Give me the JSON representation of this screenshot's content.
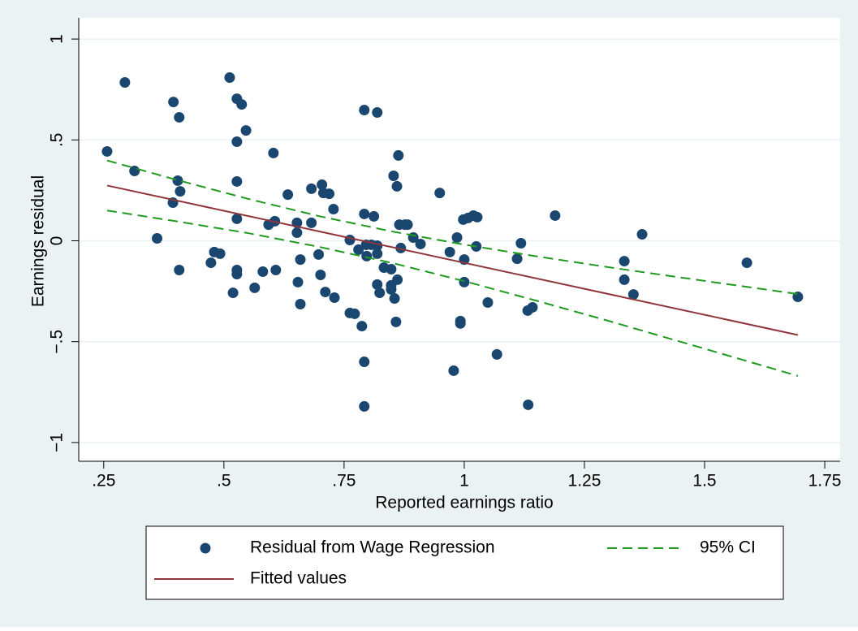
{
  "chart_data": {
    "type": "scatter",
    "xlabel": "Reported earnings ratio",
    "ylabel": "Earnings residual",
    "xlim": [
      0.198,
      1.782
    ],
    "ylim": [
      -1.093,
      1.105
    ],
    "xticks": [
      {
        "value": 0.25,
        "label": ".25"
      },
      {
        "value": 0.5,
        "label": ".5"
      },
      {
        "value": 0.75,
        "label": ".75"
      },
      1,
      1.25,
      1.5,
      1.75
    ],
    "yticks": [
      {
        "value": -1,
        "label": "−1"
      },
      {
        "value": -0.5,
        "label": "−.5"
      },
      0,
      {
        "value": 0.5,
        "label": ".5"
      },
      1
    ],
    "grid": true,
    "series": [
      {
        "name": "Residual from Wage Regression",
        "type": "scatter",
        "color": "#1a476f",
        "x": [
          0.257,
          0.294,
          0.314,
          0.361,
          0.394,
          0.395,
          0.404,
          0.407,
          0.409,
          0.407,
          0.473,
          0.48,
          0.492,
          0.512,
          0.519,
          0.527,
          0.527,
          0.527,
          0.527,
          0.527,
          0.527,
          0.537,
          0.546,
          0.564,
          0.581,
          0.593,
          0.603,
          0.608,
          0.606,
          0.633,
          0.652,
          0.652,
          0.654,
          0.659,
          0.659,
          0.682,
          0.682,
          0.697,
          0.701,
          0.704,
          0.707,
          0.711,
          0.719,
          0.728,
          0.73,
          0.762,
          0.762,
          0.772,
          0.78,
          0.787,
          0.792,
          0.792,
          0.792,
          0.792,
          0.796,
          0.797,
          0.807,
          0.812,
          0.819,
          0.819,
          0.819,
          0.819,
          0.824,
          0.833,
          0.848,
          0.848,
          0.848,
          0.853,
          0.855,
          0.858,
          0.86,
          0.861,
          0.863,
          0.865,
          0.868,
          0.877,
          0.882,
          0.894,
          0.909,
          0.949,
          0.97,
          0.978,
          0.985,
          0.992,
          0.992,
          0.998,
          1.0,
          1.0,
          1.008,
          1.019,
          1.027,
          1.025,
          1.049,
          1.068,
          1.11,
          1.118,
          1.132,
          1.133,
          1.142,
          1.189,
          1.333,
          1.333,
          1.352,
          1.37,
          1.588,
          1.694
        ],
        "values": [
          0.443,
          0.785,
          0.346,
          0.012,
          0.189,
          0.688,
          0.298,
          0.612,
          0.245,
          -0.145,
          -0.109,
          -0.056,
          -0.064,
          0.809,
          -0.258,
          0.704,
          0.294,
          0.491,
          0.109,
          -0.145,
          -0.165,
          0.676,
          0.547,
          -0.233,
          -0.153,
          0.08,
          0.435,
          -0.145,
          0.097,
          0.229,
          0.089,
          0.04,
          -0.205,
          -0.093,
          -0.314,
          0.089,
          0.258,
          -0.068,
          -0.169,
          0.278,
          0.237,
          -0.254,
          0.233,
          0.157,
          -0.282,
          0.004,
          -0.358,
          -0.362,
          -0.044,
          -0.423,
          0.648,
          0.133,
          -0.6,
          -0.821,
          -0.02,
          -0.076,
          -0.02,
          0.121,
          0.636,
          -0.024,
          -0.064,
          -0.217,
          -0.258,
          -0.133,
          -0.141,
          -0.221,
          -0.241,
          0.322,
          -0.286,
          -0.402,
          0.27,
          -0.193,
          0.423,
          0.08,
          -0.036,
          0.08,
          0.08,
          0.016,
          -0.016,
          0.237,
          -0.056,
          -0.644,
          0.016,
          -0.398,
          -0.41,
          0.105,
          -0.205,
          -0.093,
          0.113,
          0.125,
          0.117,
          -0.028,
          -0.306,
          -0.563,
          -0.089,
          -0.012,
          -0.346,
          -0.813,
          -0.33,
          0.125,
          -0.101,
          -0.193,
          -0.266,
          0.032,
          -0.109,
          -0.278
        ]
      },
      {
        "name": "95% CI",
        "type": "ci",
        "color": "#1f9a1f",
        "x": [
          0.257,
          0.4,
          0.55,
          0.7,
          0.85,
          1.0,
          1.15,
          1.3,
          1.5,
          1.694
        ],
        "upper": [
          0.398,
          0.303,
          0.208,
          0.121,
          0.046,
          -0.019,
          -0.077,
          -0.131,
          -0.199,
          -0.264
        ],
        "lower": [
          0.15,
          0.097,
          0.038,
          -0.031,
          -0.11,
          -0.2,
          -0.297,
          -0.397,
          -0.535,
          -0.67
        ]
      },
      {
        "name": "Fitted values",
        "type": "line",
        "color": "#90353b",
        "x": [
          0.257,
          1.694
        ],
        "values": [
          0.274,
          -0.467
        ]
      }
    ]
  }
}
